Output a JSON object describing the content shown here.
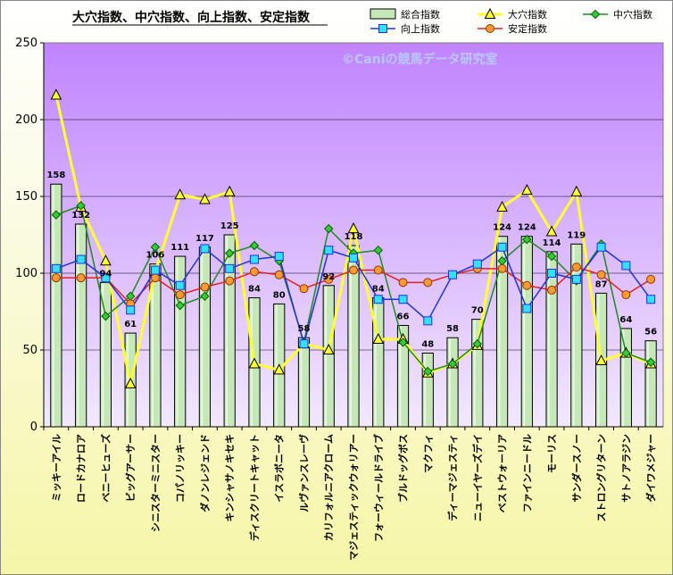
{
  "chart_data": {
    "type": "bar",
    "title": "大穴指数、中穴指数、向上指数、安定指数",
    "watermark": "©Caniの競馬データ研究室",
    "xlabel": "",
    "ylabel": "",
    "ylim": [
      0,
      250
    ],
    "yticks": [
      0,
      50,
      100,
      150,
      200,
      250
    ],
    "grid": true,
    "legend_position": "top-right",
    "colors": {
      "plot_bg_top": "#c084ff",
      "plot_bg_bottom": "#f2e8ff",
      "bar_fill": "#c6e8b8",
      "bar_edge": "#000000",
      "yellow_line": "#ffff33",
      "green_line": "#1f8a1f",
      "blue_line": "#1f33d6",
      "red_line": "#e02020",
      "orange_marker": "#ff9933",
      "cyan_marker": "#33e0ff"
    },
    "categories": [
      "ミッキーアイル",
      "ロードカナロア",
      "ベニーヒューズ",
      "ビッグアーサー",
      "シニスターミニスター",
      "コパノリッキー",
      "ダノンレジェンド",
      "キンシャサノキセキ",
      "ディスクリートキャット",
      "イスラボニータ",
      "ルヴァンスレーヴ",
      "カリフォルニアクローム",
      "マジェスティックウォリアー",
      "フォーウィールドライブ",
      "ブルドッグボス",
      "マクフィ",
      "ディーマジェスティ",
      "ニューイヤーズデイ",
      "ベストウォーリア",
      "ファインニードル",
      "モーリス",
      "サンダースノー",
      "ストロングリターン",
      "サトノアラジン",
      "ダイワメジャー"
    ],
    "series": [
      {
        "name": "総合指数",
        "kind": "bar",
        "values": [
          158,
          132,
          94,
          61,
          106,
          111,
          117,
          125,
          84,
          80,
          58,
          92,
          118,
          84,
          66,
          48,
          58,
          70,
          124,
          124,
          114,
          119,
          87,
          64,
          56
        ]
      },
      {
        "name": "大穴指数",
        "kind": "line",
        "values": [
          216,
          143,
          108,
          28,
          101,
          151,
          148,
          153,
          41,
          37,
          54,
          50,
          129,
          57,
          57,
          35,
          41,
          53,
          143,
          154,
          127,
          153,
          43,
          48,
          41
        ]
      },
      {
        "name": "中穴指数",
        "kind": "line",
        "values": [
          138,
          144,
          72,
          85,
          117,
          79,
          85,
          113,
          118,
          108,
          55,
          129,
          113,
          115,
          55,
          36,
          41,
          54,
          108,
          122,
          111,
          95,
          119,
          48,
          42
        ]
      },
      {
        "name": "向上指数",
        "kind": "line",
        "values": [
          103,
          109,
          97,
          76,
          102,
          92,
          116,
          103,
          109,
          111,
          54,
          115,
          110,
          83,
          83,
          69,
          99,
          106,
          117,
          77,
          100,
          96,
          117,
          105,
          83
        ]
      },
      {
        "name": "安定指数",
        "kind": "line",
        "values": [
          97,
          97,
          97,
          80,
          97,
          86,
          91,
          95,
          101,
          99,
          90,
          96,
          102,
          102,
          94,
          94,
          99,
          103,
          103,
          92,
          89,
          104,
          99,
          86,
          96
        ]
      }
    ],
    "bar_labels": [
      "158",
      "132",
      "94",
      "61",
      "106",
      "111",
      "117",
      "125",
      "84",
      "80",
      "58",
      "92",
      "118",
      "84",
      "66",
      "48",
      "58",
      "70",
      "124",
      "124",
      "114",
      "119",
      "87",
      "64",
      "56"
    ]
  }
}
